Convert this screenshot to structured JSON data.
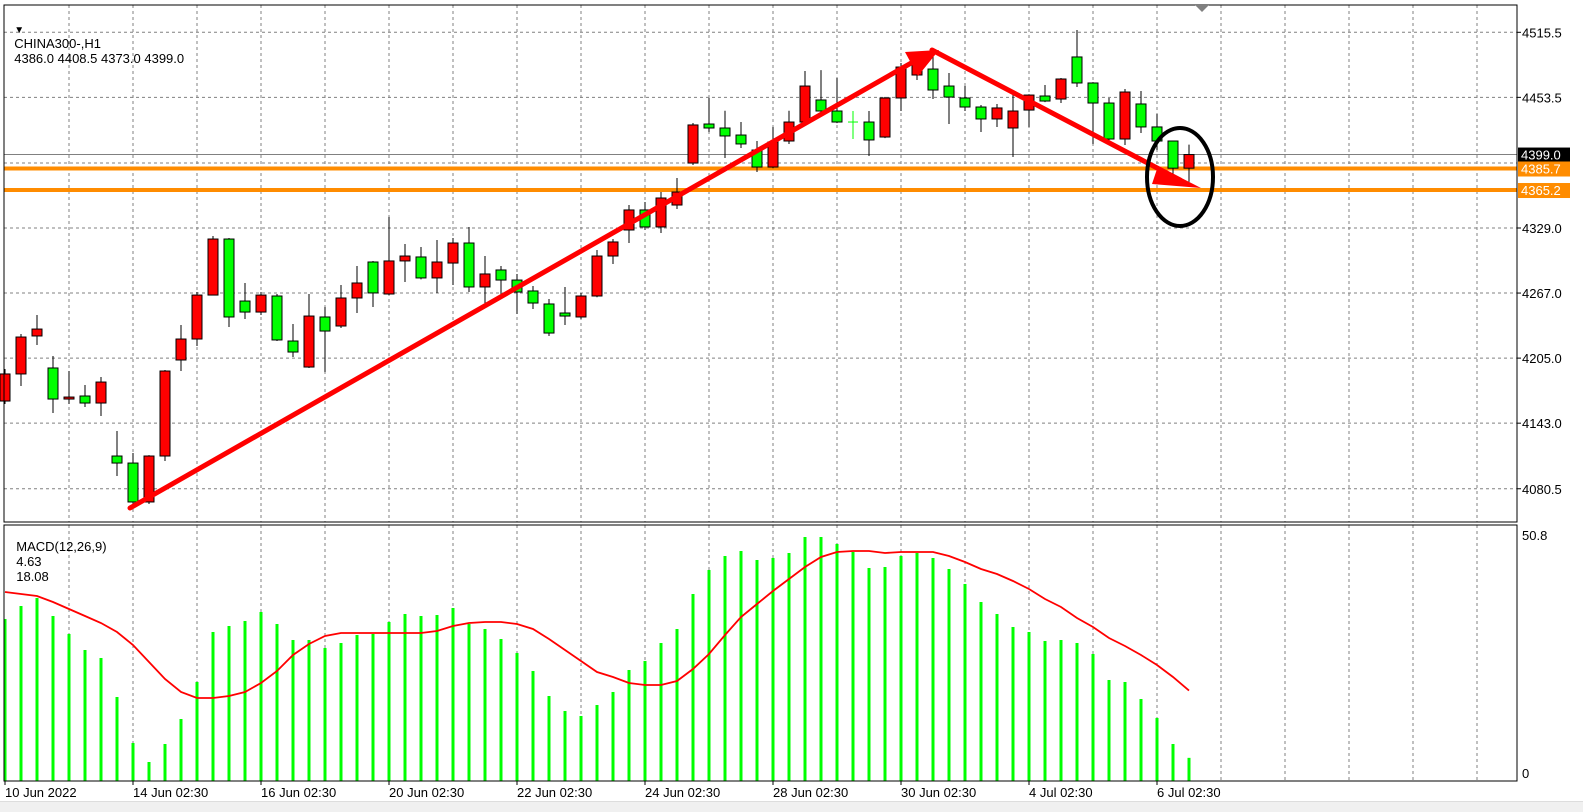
{
  "header": {
    "symbol_timeframe": "CHINA300-,H1",
    "ohlc_text": "4386.0 4408.5 4373.0 4399.0"
  },
  "macd_header": {
    "label": "MACD(12,26,9)",
    "main_value": "4.63",
    "signal_value": "18.08"
  },
  "colors": {
    "bull": "#FF0000",
    "bear": "#00FF00",
    "outline": "#000000",
    "grid": "#808080",
    "level_line": "#FF8C00",
    "bid_line": "#808080",
    "macd_hist": "#00FF00",
    "macd_signal": "#FF0000",
    "annotation_arrow": "#FF0000",
    "annotation_ellipse": "#000000"
  },
  "chart_data": [
    {
      "type": "candlestick",
      "title": "CHINA300-,H1",
      "ylim": [
        4070,
        4525
      ],
      "y_ticks": [
        "4515.5",
        "4453.5",
        "4329.0",
        "4267.0",
        "4205.0",
        "4143.0",
        "4080.5"
      ],
      "grid": true,
      "x_tick_labels": [
        {
          "bar": 0,
          "label": "10 Jun 2022"
        },
        {
          "bar": 8,
          "label": "14 Jun 02:30"
        },
        {
          "bar": 16,
          "label": "16 Jun 02:30"
        },
        {
          "bar": 24,
          "label": "20 Jun 02:30"
        },
        {
          "bar": 32,
          "label": "22 Jun 02:30"
        },
        {
          "bar": 40,
          "label": "24 Jun 02:30"
        },
        {
          "bar": 48,
          "label": "28 Jun 02:30"
        },
        {
          "bar": 56,
          "label": "30 Jun 02:30"
        },
        {
          "bar": 64,
          "label": "4 Jul 02:30"
        },
        {
          "bar": 72,
          "label": "6 Jul 02:30"
        }
      ],
      "ohlc": [
        [
          4164.1,
          4194.6,
          4161.3,
          4189.9
        ],
        [
          4189.9,
          4228.0,
          4178.4,
          4225.1
        ],
        [
          4226.1,
          4246.1,
          4217.5,
          4232.7
        ],
        [
          4195.6,
          4207.0,
          4152.7,
          4166.0
        ],
        [
          4166.0,
          4192.7,
          4161.3,
          4167.9
        ],
        [
          4168.9,
          4179.4,
          4158.4,
          4162.2
        ],
        [
          4162.2,
          4187.0,
          4149.8,
          4182.2
        ],
        [
          4111.7,
          4135.5,
          4092.7,
          4105.0
        ],
        [
          4105.0,
          4114.6,
          4065.0,
          4067.9
        ],
        [
          4067.9,
          4112.5,
          4066.0,
          4111.7
        ],
        [
          4111.7,
          4193.7,
          4106.9,
          4192.7
        ],
        [
          4203.2,
          4236.6,
          4192.7,
          4223.2
        ],
        [
          4223.2,
          4268.0,
          4216.5,
          4265.1
        ],
        [
          4265.1,
          4321.4,
          4265.0,
          4318.5
        ],
        [
          4318.5,
          4319.5,
          4234.7,
          4244.2
        ],
        [
          4259.4,
          4276.6,
          4242.3,
          4248.9
        ],
        [
          4248.9,
          4268.0,
          4246.1,
          4265.1
        ],
        [
          4264.2,
          4266.1,
          4221.3,
          4222.3
        ],
        [
          4221.3,
          4237.5,
          4206.1,
          4210.8
        ],
        [
          4196.5,
          4266.1,
          4195.6,
          4245.1
        ],
        [
          4244.2,
          4253.7,
          4191.8,
          4230.8
        ],
        [
          4235.6,
          4274.7,
          4233.7,
          4262.3
        ],
        [
          4262.3,
          4292.8,
          4248.0,
          4276.6
        ],
        [
          4296.6,
          4297.6,
          4253.7,
          4267.1
        ],
        [
          4266.1,
          4339.5,
          4265.1,
          4297.6
        ],
        [
          4297.6,
          4313.8,
          4277.5,
          4302.3
        ],
        [
          4301.4,
          4310.9,
          4280.0,
          4281.4
        ],
        [
          4281.4,
          4317.6,
          4267.1,
          4296.6
        ],
        [
          4295.6,
          4319.5,
          4274.7,
          4314.7
        ],
        [
          4314.7,
          4330.0,
          4268.0,
          4272.8
        ],
        [
          4272.8,
          4302.3,
          4256.6,
          4285.2
        ],
        [
          4289.0,
          4292.8,
          4263.2,
          4279.4
        ],
        [
          4279.4,
          4285.2,
          4247.0,
          4268.0
        ],
        [
          4269.0,
          4273.7,
          4251.8,
          4257.5
        ],
        [
          4256.6,
          4261.3,
          4226.1,
          4228.9
        ],
        [
          4248.0,
          4272.8,
          4236.6,
          4245.1
        ],
        [
          4244.2,
          4267.1,
          4242.3,
          4264.2
        ],
        [
          4264.2,
          4308.0,
          4263.0,
          4302.3
        ],
        [
          4302.3,
          4318.5,
          4294.7,
          4315.7
        ],
        [
          4327.1,
          4350.9,
          4314.7,
          4346.2
        ],
        [
          4346.2,
          4353.8,
          4327.1,
          4330.0
        ],
        [
          4330.0,
          4363.3,
          4324.2,
          4357.6
        ],
        [
          4350.9,
          4376.7,
          4347.1,
          4363.3
        ],
        [
          4390.9,
          4429.1,
          4389.0,
          4427.2
        ],
        [
          4428.1,
          4452.9,
          4420.5,
          4424.3
        ],
        [
          4424.3,
          4440.7,
          4395.7,
          4416.7
        ],
        [
          4417.6,
          4430.0,
          4405.2,
          4409.1
        ],
        [
          4403.3,
          4411.9,
          4382.4,
          4387.1
        ],
        [
          4387.1,
          4425.3,
          4386.0,
          4411.0
        ],
        [
          4411.9,
          4440.7,
          4409.1,
          4430.0
        ],
        [
          4430.0,
          4478.6,
          4429.0,
          4464.3
        ],
        [
          4451.0,
          4479.5,
          4438.6,
          4440.5
        ],
        [
          4440.5,
          4471.9,
          4429.0,
          4430.0
        ],
        [
          4430.0,
          4440.5,
          4413.8,
          4430.0
        ],
        [
          4430.0,
          4440.5,
          4397.6,
          4412.9
        ],
        [
          4415.7,
          4454.0,
          4414.7,
          4452.9
        ],
        [
          4452.9,
          4486.2,
          4440.5,
          4482.4
        ],
        [
          4474.8,
          4490.0,
          4470.0,
          4489.1
        ],
        [
          4480.5,
          4499.2,
          4451.9,
          4460.5
        ],
        [
          4464.3,
          4476.7,
          4428.1,
          4453.8
        ],
        [
          4452.9,
          4464.3,
          4440.5,
          4444.3
        ],
        [
          4444.3,
          4446.2,
          4420.5,
          4432.9
        ],
        [
          4432.9,
          4447.2,
          4425.3,
          4443.4
        ],
        [
          4424.3,
          4457.7,
          4396.7,
          4440.5
        ],
        [
          4441.4,
          4456.5,
          4425.3,
          4455.7
        ],
        [
          4454.8,
          4465.3,
          4449.0,
          4450.0
        ],
        [
          4451.9,
          4472.0,
          4448.1,
          4471.0
        ],
        [
          4492.0,
          4517.7,
          4463.4,
          4467.2
        ],
        [
          4467.2,
          4468.0,
          4409.1,
          4448.1
        ],
        [
          4448.1,
          4452.9,
          4408.1,
          4413.8
        ],
        [
          4413.8,
          4461.5,
          4408.1,
          4458.6
        ],
        [
          4447.2,
          4459.6,
          4419.5,
          4425.3
        ],
        [
          4425.3,
          4437.6,
          4403.3,
          4411.9
        ],
        [
          4411.9,
          4412.0,
          4380.0,
          4386.0
        ],
        [
          4386.0,
          4408.5,
          4373.0,
          4399.0
        ]
      ],
      "price_labels": [
        {
          "value": "4399.0",
          "kind": "bid"
        },
        {
          "value": "4385.7",
          "kind": "level"
        },
        {
          "value": "4365.2",
          "kind": "level"
        }
      ],
      "annotations": [
        "up-trend-arrow",
        "down-trend-arrow",
        "highlight-ellipse"
      ]
    },
    {
      "type": "bar+line",
      "title": "MACD(12,26,9)",
      "ylim": [
        0,
        50.8
      ],
      "y_ticks": [
        "50.8",
        "0"
      ],
      "series": [
        {
          "name": "MACD",
          "type": "bar",
          "values": [
            32.4,
            35.0,
            36.6,
            33.0,
            29.4,
            26.2,
            24.6,
            16.8,
            7.6,
            3.8,
            7.4,
            12.4,
            19.8,
            29.8,
            31.0,
            32.0,
            33.8,
            31.4,
            28.2,
            28.2,
            26.6,
            27.6,
            29.2,
            29.4,
            31.8,
            33.4,
            33.0,
            33.2,
            34.6,
            31.4,
            30.4,
            28.4,
            25.6,
            22.0,
            17.0,
            14.0,
            13.0,
            15.2,
            17.8,
            22.2,
            24.0,
            27.6,
            30.4,
            37.4,
            42.2,
            45.0,
            46.0,
            44.2,
            44.6,
            45.6,
            48.8,
            48.8,
            47.4,
            45.8,
            42.6,
            42.8,
            45.0,
            45.6,
            44.6,
            42.4,
            39.4,
            35.8,
            33.4,
            30.8,
            29.8,
            28.0,
            28.2,
            27.6,
            25.4,
            20.2,
            19.8,
            16.4,
            12.6,
            7.4,
            4.63
          ]
        },
        {
          "name": "Signal",
          "type": "line",
          "values": [
            37.8,
            37.4,
            37.0,
            35.8,
            34.4,
            33.0,
            31.6,
            29.8,
            27.2,
            23.8,
            20.4,
            17.8,
            16.6,
            16.6,
            17.0,
            17.8,
            19.6,
            22.0,
            25.2,
            27.4,
            29.0,
            29.6,
            29.6,
            29.6,
            29.6,
            29.6,
            29.6,
            30.0,
            31.0,
            31.6,
            31.8,
            31.8,
            31.4,
            30.4,
            28.4,
            26.2,
            24.0,
            21.8,
            20.8,
            19.6,
            19.2,
            19.2,
            20.0,
            22.4,
            25.4,
            29.2,
            32.8,
            35.4,
            38.0,
            40.4,
            42.8,
            44.8,
            45.8,
            46.0,
            46.0,
            45.6,
            45.8,
            45.8,
            45.8,
            45.0,
            43.8,
            42.4,
            41.4,
            40.0,
            38.4,
            36.4,
            34.8,
            32.6,
            30.8,
            28.6,
            27.0,
            25.2,
            23.2,
            20.8,
            18.08
          ]
        }
      ]
    }
  ]
}
